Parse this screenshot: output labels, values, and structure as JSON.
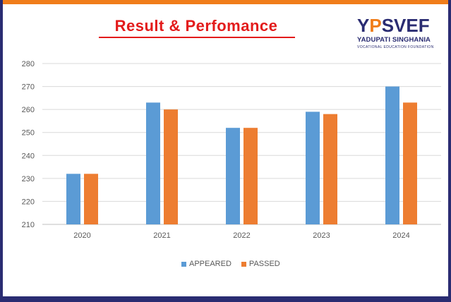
{
  "header": {
    "title": "Result & Perfomance",
    "logo": {
      "name_prefix": "Y",
      "name_accent": "P",
      "name_rest": "SVEF",
      "line1": "YADUPATI SINGHANIA",
      "line2": "VOCATIONAL EDUCATION FOUNDATION"
    }
  },
  "colors": {
    "title": "#e31b1b",
    "appeared": "#5b9bd5",
    "passed": "#ed7d31",
    "frame_navy": "#2a2c72",
    "frame_orange": "#f07d1a"
  },
  "chart_data": {
    "type": "bar",
    "title": "Result & Perfomance",
    "categories": [
      "2020",
      "2021",
      "2022",
      "2023",
      "2024"
    ],
    "series": [
      {
        "name": "APPEARED",
        "values": [
          232,
          263,
          252,
          259,
          270
        ]
      },
      {
        "name": "PASSED",
        "values": [
          232,
          260,
          252,
          258,
          263
        ]
      }
    ],
    "ylim": [
      210,
      280
    ],
    "yticks": [
      "210",
      "220",
      "230",
      "240",
      "250",
      "260",
      "270",
      "280"
    ],
    "grid": true,
    "legend_position": "bottom"
  }
}
